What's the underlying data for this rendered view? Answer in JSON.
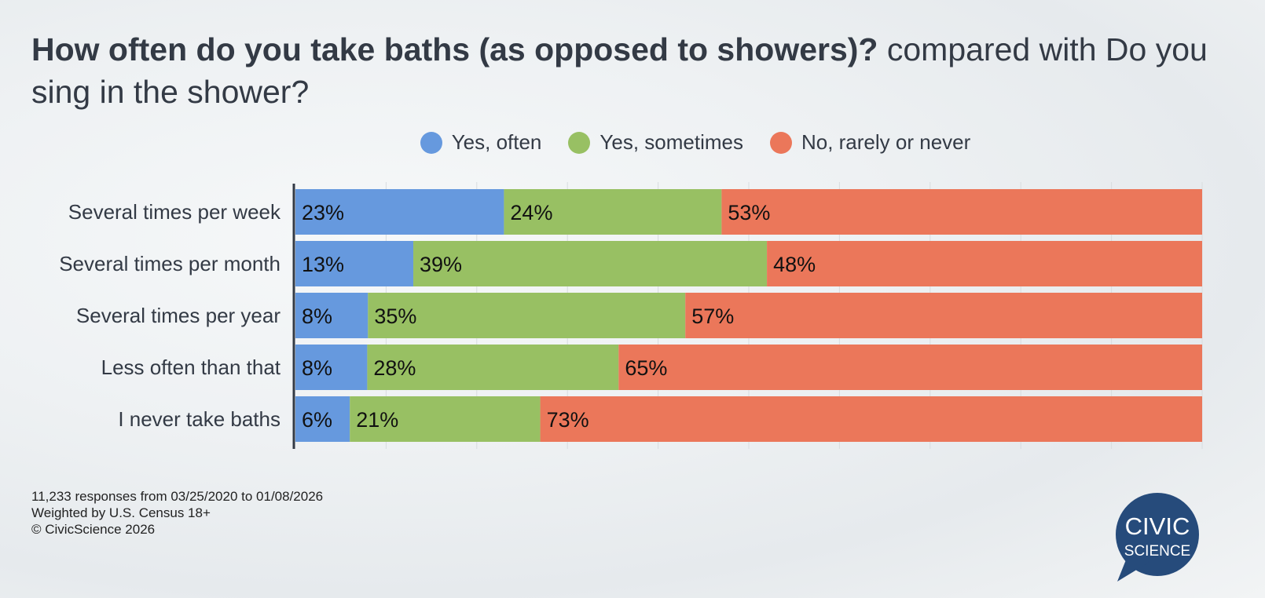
{
  "title": {
    "bold": "How often do you take baths (as opposed to showers)?",
    "rest": " compared with Do you sing in the shower?"
  },
  "chart_data": {
    "type": "bar",
    "orientation": "horizontal",
    "stacked": true,
    "categories": [
      "Several times per week",
      "Several times per month",
      "Several times per year",
      "Less often than that",
      "I never take baths"
    ],
    "series": [
      {
        "name": "Yes, often",
        "color": "#6699de",
        "values": [
          23,
          13,
          8,
          8,
          6
        ]
      },
      {
        "name": "Yes, sometimes",
        "color": "#98c063",
        "values": [
          24,
          39,
          35,
          28,
          21
        ]
      },
      {
        "name": "No, rarely or never",
        "color": "#eb775a",
        "values": [
          53,
          48,
          57,
          65,
          73
        ]
      }
    ],
    "xlim": [
      0,
      100
    ],
    "grid": true,
    "legend": "top"
  },
  "footer": [
    "11,233 responses from 03/25/2020 to 01/08/2026",
    "Weighted by U.S. Census 18+",
    "© CivicScience 2026"
  ],
  "logo": {
    "line1": "CIVIC",
    "line2": "SCIENCE",
    "color": "#264b7b"
  }
}
